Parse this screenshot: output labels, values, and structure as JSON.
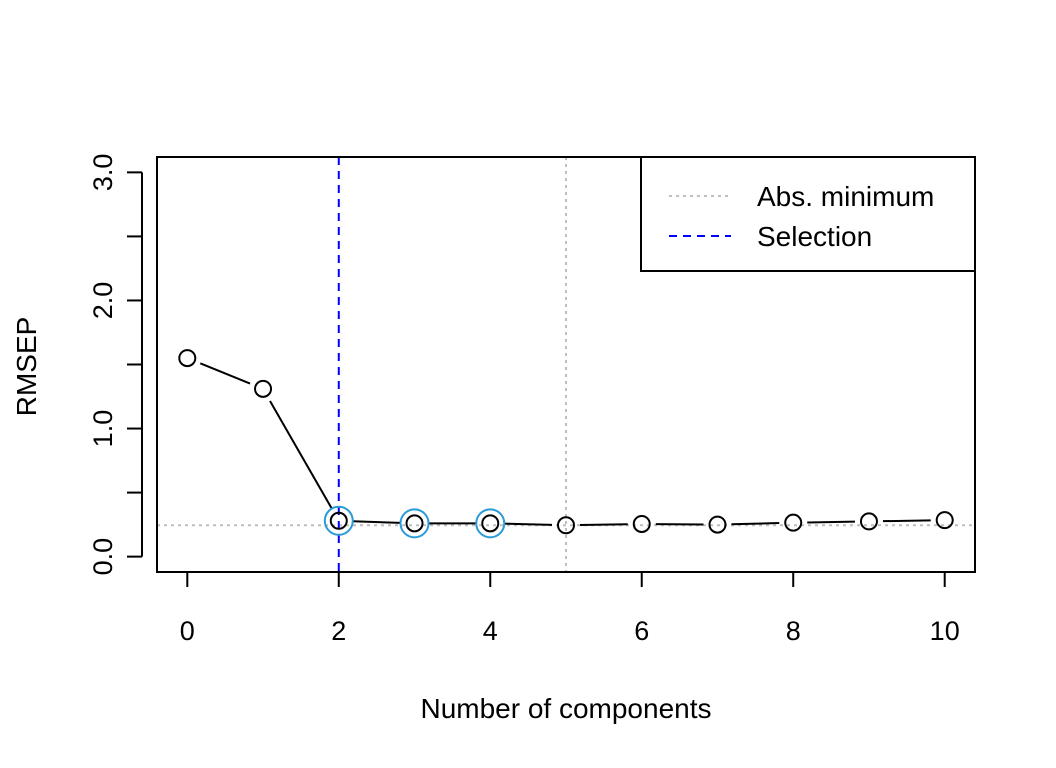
{
  "chart_data": {
    "type": "line",
    "xlabel": "Number of components",
    "ylabel": "RMSEP",
    "xlim": [
      -0.4,
      10.4
    ],
    "ylim": [
      -0.12,
      3.12
    ],
    "x_ticks": [
      0,
      2,
      4,
      6,
      8,
      10
    ],
    "x_tick_labels": [
      "0",
      "2",
      "4",
      "6",
      "8",
      "10"
    ],
    "y_ticks": [
      0,
      0.5,
      1.0,
      1.5,
      2.0,
      2.5,
      3.0
    ],
    "y_tick_labels": [
      "0.0",
      "",
      "1.0",
      "",
      "2.0",
      "",
      "3.0"
    ],
    "series": [
      {
        "x": [
          0,
          1,
          2,
          3,
          4,
          5,
          6,
          7,
          8,
          9,
          10
        ],
        "values": [
          1.55,
          1.31,
          0.28,
          0.26,
          0.26,
          0.245,
          0.255,
          0.25,
          0.265,
          0.275,
          0.285
        ]
      }
    ],
    "highlighted_x": [
      2,
      3,
      4
    ],
    "abs_minimum": {
      "x": 5,
      "y": 0.245
    },
    "selection": {
      "x": 2
    },
    "legend": {
      "placement": "top-right",
      "entries": [
        {
          "label": "Abs. minimum",
          "color": "#bebebe",
          "style": "dotted"
        },
        {
          "label": "Selection",
          "color": "#0000ff",
          "style": "dashed"
        }
      ]
    },
    "colors": {
      "line": "#000000",
      "highlight": "#2b9bd8",
      "abs_minimum": "#bebebe",
      "selection": "#0000ff"
    },
    "grid": false
  }
}
